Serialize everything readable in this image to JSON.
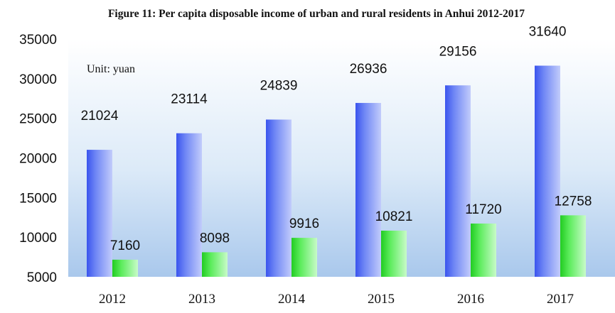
{
  "chart_data": {
    "type": "bar",
    "title": "Figure 11: Per capita disposable income of urban and rural residents in Anhui 2012-2017",
    "unit_note": "Unit: yuan",
    "categories": [
      "2012",
      "2013",
      "2014",
      "2015",
      "2016",
      "2017"
    ],
    "series": [
      {
        "values": [
          21024,
          23114,
          24839,
          26936,
          29156,
          31640
        ],
        "color": "#4a64f0"
      },
      {
        "values": [
          7160,
          8098,
          9916,
          10821,
          11720,
          12758
        ],
        "color": "#3ddc3d"
      }
    ],
    "ylim": [
      5000,
      35000
    ],
    "yticks": [
      5000,
      10000,
      15000,
      20000,
      25000,
      30000,
      35000
    ],
    "xlabel": "",
    "ylabel": "",
    "grid": false,
    "background": "gradient light blue"
  }
}
